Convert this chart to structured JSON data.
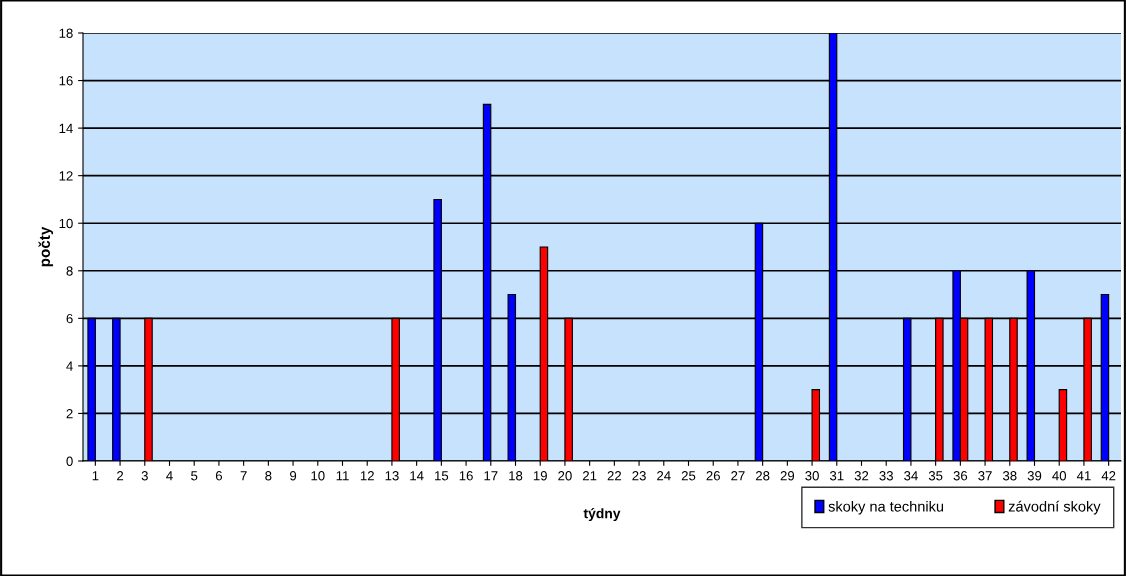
{
  "chart_data": {
    "type": "bar",
    "xlabel": "týdny",
    "ylabel": "počty",
    "categories": [
      "1",
      "2",
      "3",
      "4",
      "5",
      "6",
      "7",
      "8",
      "9",
      "10",
      "11",
      "12",
      "13",
      "14",
      "15",
      "16",
      "17",
      "18",
      "19",
      "20",
      "21",
      "22",
      "23",
      "24",
      "25",
      "26",
      "27",
      "28",
      "29",
      "30",
      "31",
      "32",
      "33",
      "34",
      "35",
      "36",
      "37",
      "38",
      "39",
      "40",
      "41",
      "42"
    ],
    "series": [
      {
        "name": "skoky na techniku",
        "color": "#0000ff",
        "values": [
          6,
          6,
          null,
          null,
          null,
          null,
          null,
          null,
          null,
          null,
          null,
          null,
          null,
          null,
          11,
          null,
          15,
          7,
          null,
          null,
          null,
          null,
          null,
          null,
          null,
          null,
          null,
          10,
          null,
          null,
          18,
          null,
          null,
          6,
          null,
          8,
          null,
          null,
          8,
          null,
          null,
          7
        ]
      },
      {
        "name": "závodní skoky",
        "color": "#ff0000",
        "values": [
          null,
          null,
          6,
          null,
          null,
          null,
          null,
          null,
          null,
          null,
          null,
          null,
          6,
          null,
          null,
          null,
          null,
          null,
          9,
          6,
          null,
          null,
          null,
          null,
          null,
          null,
          null,
          null,
          null,
          3,
          null,
          null,
          null,
          null,
          6,
          6,
          6,
          6,
          null,
          3,
          6,
          null
        ]
      }
    ],
    "ylim": [
      0,
      18
    ],
    "yticks": [
      0,
      2,
      4,
      6,
      8,
      10,
      12,
      14,
      16,
      18
    ],
    "grid": "y",
    "legend": "bottom right"
  }
}
